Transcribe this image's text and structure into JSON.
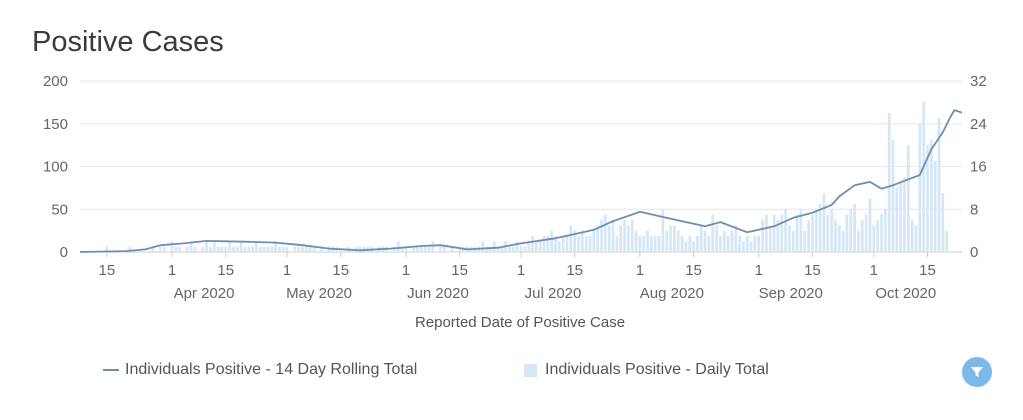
{
  "chart_data": {
    "type": "bar+line",
    "title": "Positive Cases",
    "xlabel": "Reported Date of Positive Case",
    "x_start": "2020-03-08",
    "x_end": "2020-10-24",
    "x_month_ticks": [
      {
        "date": "2020-03-15",
        "label": "15"
      },
      {
        "date": "2020-04-01",
        "label": "1",
        "month": "Apr 2020"
      },
      {
        "date": "2020-04-15",
        "label": "15"
      },
      {
        "date": "2020-05-01",
        "label": "1",
        "month": "May 2020"
      },
      {
        "date": "2020-05-15",
        "label": "15"
      },
      {
        "date": "2020-06-01",
        "label": "1",
        "month": "Jun 2020"
      },
      {
        "date": "2020-06-15",
        "label": "15"
      },
      {
        "date": "2020-07-01",
        "label": "1",
        "month": "Jul 2020"
      },
      {
        "date": "2020-07-15",
        "label": "15"
      },
      {
        "date": "2020-08-01",
        "label": "1",
        "month": "Aug 2020"
      },
      {
        "date": "2020-08-15",
        "label": "15"
      },
      {
        "date": "2020-09-01",
        "label": "1",
        "month": "Sep 2020"
      },
      {
        "date": "2020-09-15",
        "label": "15"
      },
      {
        "date": "2020-10-01",
        "label": "1",
        "month": "Oct 2020"
      },
      {
        "date": "2020-10-15",
        "label": "15"
      }
    ],
    "y_left": {
      "min": 0,
      "max": 200,
      "ticks": [
        "0",
        "50",
        "100",
        "150",
        "200"
      ]
    },
    "y_right": {
      "min": 0,
      "max": 32,
      "ticks": [
        "0",
        "8",
        "16",
        "24",
        "32"
      ]
    },
    "grid": true,
    "legend_position": "bottom",
    "series": [
      {
        "name": "Individuals Positive - 14 Day Rolling Total",
        "kind": "line",
        "axis": "left",
        "color": "#6b8fb3",
        "points": [
          [
            "2020-03-08",
            0
          ],
          [
            "2020-03-20",
            1
          ],
          [
            "2020-03-25",
            3
          ],
          [
            "2020-03-29",
            8
          ],
          [
            "2020-04-04",
            10
          ],
          [
            "2020-04-10",
            13
          ],
          [
            "2020-04-20",
            12
          ],
          [
            "2020-04-28",
            11
          ],
          [
            "2020-05-05",
            8
          ],
          [
            "2020-05-12",
            4
          ],
          [
            "2020-05-20",
            2
          ],
          [
            "2020-05-28",
            4
          ],
          [
            "2020-06-05",
            7
          ],
          [
            "2020-06-10",
            8
          ],
          [
            "2020-06-17",
            3
          ],
          [
            "2020-06-25",
            5
          ],
          [
            "2020-07-01",
            10
          ],
          [
            "2020-07-10",
            16
          ],
          [
            "2020-07-16",
            22
          ],
          [
            "2020-07-20",
            26
          ],
          [
            "2020-07-25",
            36
          ],
          [
            "2020-08-01",
            47
          ],
          [
            "2020-08-05",
            43
          ],
          [
            "2020-08-12",
            36
          ],
          [
            "2020-08-18",
            30
          ],
          [
            "2020-08-22",
            35
          ],
          [
            "2020-08-29",
            23
          ],
          [
            "2020-09-05",
            30
          ],
          [
            "2020-09-10",
            40
          ],
          [
            "2020-09-15",
            46
          ],
          [
            "2020-09-20",
            55
          ],
          [
            "2020-09-22",
            65
          ],
          [
            "2020-09-26",
            78
          ],
          [
            "2020-09-30",
            82
          ],
          [
            "2020-10-03",
            74
          ],
          [
            "2020-10-06",
            78
          ],
          [
            "2020-10-10",
            85
          ],
          [
            "2020-10-13",
            90
          ],
          [
            "2020-10-16",
            120
          ],
          [
            "2020-10-19",
            140
          ],
          [
            "2020-10-21",
            158
          ],
          [
            "2020-10-22",
            166
          ],
          [
            "2020-10-24",
            163
          ]
        ]
      },
      {
        "name": "Individuals Positive - Daily Total",
        "kind": "bar",
        "axis": "right",
        "color": "#d6e6f7",
        "start_date": "2020-03-08",
        "values": [
          0,
          0,
          0,
          0,
          0,
          0,
          0,
          1,
          0,
          0,
          0,
          0,
          0,
          1,
          0,
          0,
          0,
          0,
          0,
          1,
          0,
          1,
          1,
          0,
          2,
          1,
          1,
          0,
          1,
          2,
          1,
          0,
          1,
          2,
          1,
          2,
          1,
          1,
          1,
          2,
          1,
          1,
          2,
          1,
          1,
          1,
          2,
          1,
          1,
          1,
          1,
          2,
          1,
          1,
          1,
          0,
          1,
          1,
          1,
          1,
          1,
          1,
          0,
          1,
          0,
          1,
          1,
          1,
          0,
          0,
          1,
          0,
          1,
          1,
          1,
          1,
          1,
          0,
          1,
          1,
          1,
          0,
          1,
          2,
          1,
          1,
          0,
          1,
          1,
          1,
          1,
          1,
          2,
          0,
          1,
          1,
          0,
          1,
          0,
          1,
          1,
          1,
          1,
          1,
          1,
          2,
          1,
          1,
          2,
          1,
          1,
          2,
          1,
          1,
          2,
          1,
          1,
          2,
          3,
          2,
          2,
          3,
          3,
          4,
          3,
          2,
          3,
          3,
          5,
          4,
          3,
          4,
          3,
          3,
          4,
          5,
          6,
          7,
          5,
          6,
          3,
          5,
          6,
          5,
          6,
          4,
          3,
          3,
          4,
          3,
          3,
          3,
          8,
          4,
          5,
          5,
          4,
          3,
          2,
          3,
          2,
          3,
          5,
          4,
          3,
          7,
          5,
          3,
          4,
          3,
          4,
          5,
          3,
          2,
          3,
          2,
          3,
          3,
          6,
          7,
          5,
          7,
          6,
          7,
          8,
          5,
          4,
          7,
          8,
          4,
          6,
          7,
          8,
          9,
          11,
          7,
          8,
          6,
          5,
          4,
          7,
          8,
          9,
          4,
          6,
          7,
          10,
          5,
          6,
          7,
          8,
          26,
          21,
          12,
          13,
          14,
          20,
          6,
          5,
          24,
          28,
          20,
          21,
          17,
          25,
          11,
          4
        ]
      }
    ]
  },
  "toolbar": {
    "filter_icon": "filter-icon"
  }
}
